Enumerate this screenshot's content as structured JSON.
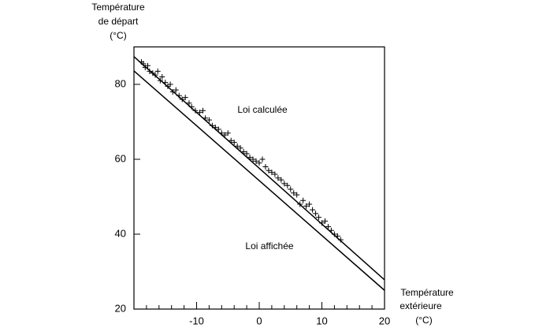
{
  "chart_data": {
    "type": "scatter",
    "ylabel": [
      "Température",
      "de départ",
      "(°C)"
    ],
    "xlabel": [
      "Température",
      "extérieure",
      "(°C)"
    ],
    "annotations": [
      "Loi calculée",
      "Loi affichée"
    ],
    "xlim": [
      -20,
      20
    ],
    "ylim": [
      20,
      90
    ],
    "xticks": [
      -10,
      0,
      10,
      20
    ],
    "xminorticks": [
      -18,
      -16,
      -14,
      -12,
      -10,
      -8,
      -6,
      -4,
      -2,
      0,
      2,
      4,
      6,
      8,
      10,
      12,
      14,
      16,
      18,
      20
    ],
    "yticks": [
      20,
      40,
      60,
      80
    ],
    "color": "#000000",
    "lines": [
      {
        "x": [
          -20,
          20
        ],
        "values": [
          87.4,
          27.8
        ]
      },
      {
        "x": [
          -20,
          20
        ],
        "values": [
          83.6,
          25
        ]
      }
    ],
    "x": [
      -18.8,
      -18.5,
      -18.2,
      -17.8,
      -17.5,
      -17,
      -16.6,
      -16.2,
      -15.8,
      -15.5,
      -15,
      -14.6,
      -14.2,
      -13.8,
      -13.3,
      -12.8,
      -12.3,
      -11.8,
      -11.2,
      -10.8,
      -10.2,
      -9.5,
      -9,
      -8.6,
      -8,
      -7.5,
      -7,
      -6.5,
      -6,
      -5.5,
      -5,
      -4.5,
      -4,
      -3.5,
      -3,
      -2.5,
      -2,
      -1.5,
      -1,
      -0.5,
      0,
      0.5,
      1,
      1.5,
      2,
      2.5,
      3,
      3.5,
      4,
      4.5,
      5,
      5.5,
      6,
      6.5,
      7,
      7.5,
      8,
      8.5,
      9,
      9.5,
      10,
      10.5,
      11,
      11.5,
      12,
      12.5,
      13
    ],
    "values": [
      86,
      85.5,
      84.5,
      85,
      83.5,
      83,
      82.5,
      83.5,
      81,
      82,
      80.5,
      79.5,
      80,
      78,
      78.5,
      77,
      76,
      76.5,
      75,
      74,
      73,
      72.5,
      73,
      71,
      70.5,
      69,
      68.5,
      68,
      67,
      66.5,
      67,
      65,
      64.5,
      63.5,
      63,
      62,
      61.5,
      60.5,
      60,
      59.5,
      59,
      60,
      58,
      57,
      56.5,
      56,
      55,
      54.5,
      53.5,
      53,
      52,
      51,
      50.5,
      48,
      49,
      47.5,
      48,
      46.5,
      45.5,
      44.5,
      43,
      43.5,
      42,
      41,
      40,
      39.5,
      38.5
    ]
  }
}
